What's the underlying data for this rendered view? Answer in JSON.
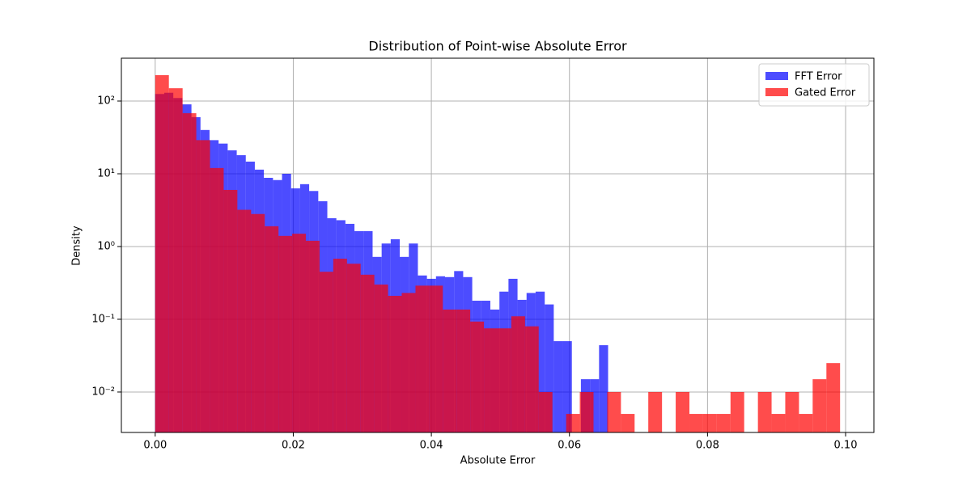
{
  "chart_data": {
    "type": "histogram",
    "title": "Distribution of Point-wise Absolute Error",
    "x_label": "Absolute Error",
    "y_label": "Density",
    "xlim": [
      -0.0049,
      0.1041
    ],
    "ylim": [
      0.00278,
      388
    ],
    "y_scale": "log",
    "grid": true,
    "legend": "upper right",
    "alpha": 0.7,
    "xticks": [
      {
        "value": 0,
        "label": "0.00"
      },
      {
        "value": 0.02,
        "label": "0.02"
      },
      {
        "value": 0.04,
        "label": "0.04"
      },
      {
        "value": 0.06,
        "label": "0.06"
      },
      {
        "value": 0.08,
        "label": "0.08"
      },
      {
        "value": 0.1,
        "label": "0.10"
      }
    ],
    "yticks": [
      {
        "value": 0.01,
        "label": "10⁻²"
      },
      {
        "value": 0.1,
        "label": "10⁻¹"
      },
      {
        "value": 1,
        "label": "10⁰"
      },
      {
        "value": 10,
        "label": "10¹"
      },
      {
        "value": 100,
        "label": "10²"
      }
    ],
    "series": [
      {
        "name": "FFT Error",
        "color": "#0000ff",
        "bins": [
          0,
          0.00131,
          0.00262,
          0.00394,
          0.00525,
          0.00656,
          0.00787,
          0.00918,
          0.0105,
          0.01181,
          0.01312,
          0.01443,
          0.01574,
          0.01706,
          0.01837,
          0.01968,
          0.02099,
          0.0223,
          0.02362,
          0.02493,
          0.02624,
          0.02755,
          0.02886,
          0.03018,
          0.03149,
          0.0328,
          0.03411,
          0.03542,
          0.03674,
          0.03805,
          0.03936,
          0.04067,
          0.04198,
          0.0433,
          0.04461,
          0.04592,
          0.04723,
          0.04854,
          0.04986,
          0.05117,
          0.05248,
          0.05379,
          0.0551,
          0.05642,
          0.05773,
          0.05904,
          0.06035,
          0.06166,
          0.06298,
          0.06429,
          0.0656
        ],
        "values": [
          125,
          130,
          110,
          90,
          60,
          40,
          29,
          26,
          21,
          18,
          14.7,
          11.4,
          8.8,
          8.2,
          10,
          6.3,
          7.2,
          5.8,
          4.2,
          2.45,
          2.3,
          2.05,
          1.63,
          1.63,
          0.72,
          1.1,
          1.26,
          0.72,
          1.1,
          0.4,
          0.36,
          0.39,
          0.38,
          0.46,
          0.38,
          0.18,
          0.18,
          0.136,
          0.24,
          0.36,
          0.185,
          0.23,
          0.24,
          0.16,
          0.05,
          0.05,
          0,
          0.015,
          0.015,
          0.044
        ]
      },
      {
        "name": "Gated Error",
        "color": "#ff0000",
        "bins": [
          0,
          0.00198,
          0.00397,
          0.00595,
          0.00794,
          0.00992,
          0.0119,
          0.01389,
          0.01587,
          0.01786,
          0.01984,
          0.02182,
          0.02381,
          0.02579,
          0.02778,
          0.02976,
          0.03174,
          0.03373,
          0.03571,
          0.0377,
          0.03968,
          0.04166,
          0.04365,
          0.04563,
          0.04762,
          0.0496,
          0.05158,
          0.05357,
          0.05555,
          0.05754,
          0.05952,
          0.0615,
          0.06349,
          0.06547,
          0.06746,
          0.06944,
          0.07142,
          0.07341,
          0.07539,
          0.07738,
          0.07936,
          0.08134,
          0.08333,
          0.08531,
          0.0873,
          0.08928,
          0.09126,
          0.09325,
          0.09523,
          0.09722,
          0.0992
        ],
        "values": [
          227,
          150,
          68,
          29,
          12,
          6,
          3.2,
          2.8,
          1.9,
          1.4,
          1.5,
          1.2,
          0.45,
          0.68,
          0.58,
          0.41,
          0.3,
          0.21,
          0.23,
          0.29,
          0.29,
          0.136,
          0.136,
          0.093,
          0.075,
          0.075,
          0.11,
          0.08,
          0.01,
          0,
          0.005,
          0.01,
          0,
          0.01,
          0.005,
          0,
          0.01,
          0,
          0.01,
          0.005,
          0.005,
          0.005,
          0.01,
          0,
          0.01,
          0.005,
          0.01,
          0.005,
          0.015,
          0.025
        ]
      }
    ]
  }
}
